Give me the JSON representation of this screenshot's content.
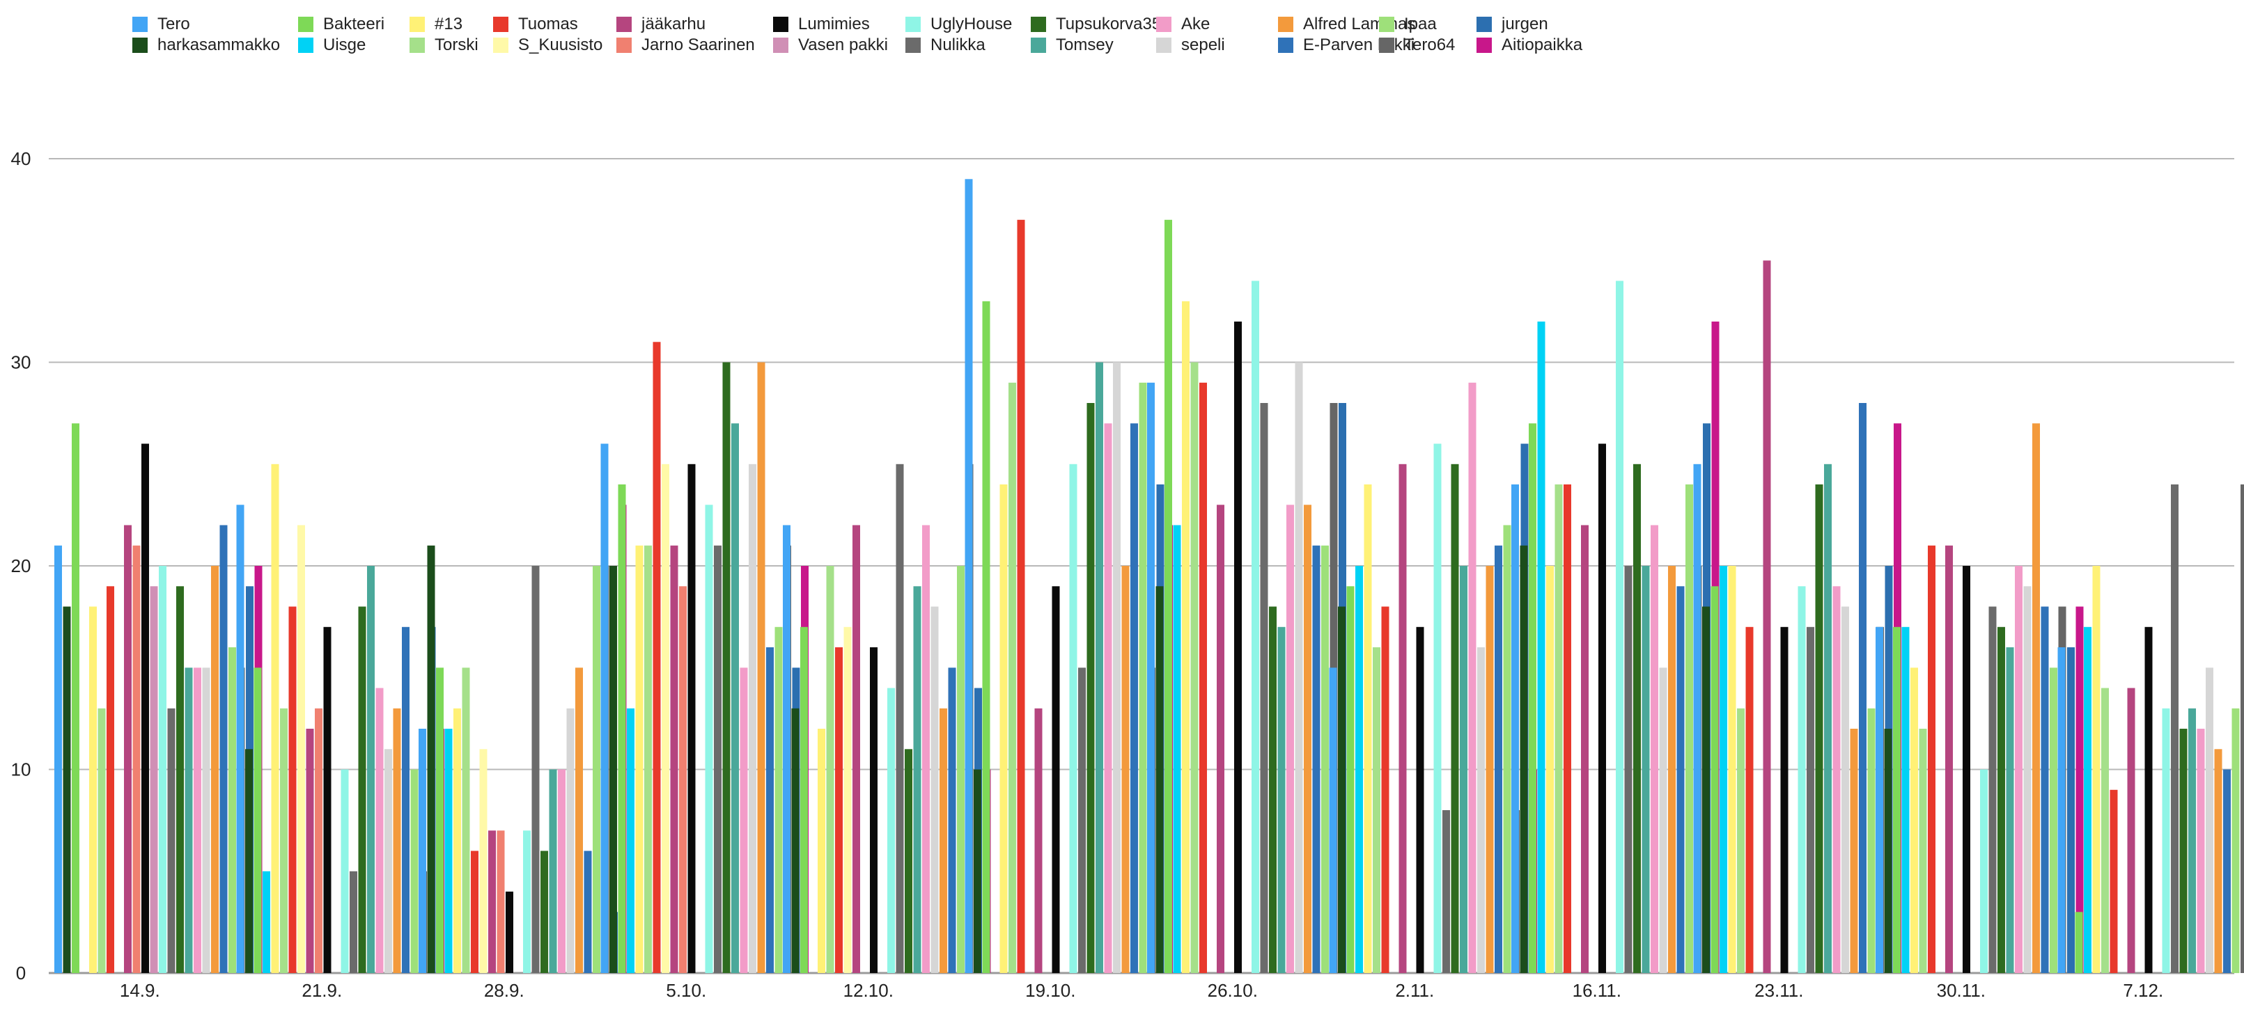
{
  "chart_data": {
    "type": "bar",
    "title": "",
    "xlabel": "",
    "ylabel": "",
    "ylim": [
      0,
      40
    ],
    "yticks": [
      0,
      10,
      20,
      30,
      40
    ],
    "grid": true,
    "legend_position": "top",
    "categories": [
      "14.9.",
      "21.9.",
      "28.9.",
      "5.10.",
      "12.10.",
      "19.10.",
      "26.10.",
      "2.11.",
      "16.11.",
      "23.11.",
      "30.11.",
      "7.12."
    ],
    "series": [
      {
        "name": "Tero",
        "color": "#42a5f5",
        "values": [
          21,
          23,
          12,
          26,
          22,
          39,
          29,
          15,
          24,
          25,
          17,
          16
        ]
      },
      {
        "name": "harkasammakko",
        "color": "#1b4d1b",
        "values": [
          18,
          11,
          21,
          20,
          13,
          10,
          19,
          18,
          21,
          18,
          12,
          null
        ]
      },
      {
        "name": "Bakteeri",
        "color": "#7ed957",
        "values": [
          27,
          15,
          15,
          24,
          17,
          33,
          37,
          19,
          27,
          19,
          17,
          3
        ]
      },
      {
        "name": "Uisge",
        "color": "#00d2f5",
        "values": [
          null,
          5,
          12,
          13,
          null,
          null,
          22,
          20,
          32,
          20,
          17,
          17
        ]
      },
      {
        "name": "#13",
        "color": "#fff176",
        "values": [
          18,
          25,
          13,
          21,
          12,
          24,
          33,
          24,
          20,
          20,
          15,
          20
        ]
      },
      {
        "name": "Torski",
        "color": "#a5e08a",
        "values": [
          13,
          13,
          15,
          21,
          20,
          29,
          30,
          16,
          24,
          13,
          12,
          14
        ]
      },
      {
        "name": "Tuomas",
        "color": "#e8392b",
        "values": [
          19,
          18,
          6,
          31,
          16,
          37,
          29,
          18,
          24,
          17,
          21,
          9
        ]
      },
      {
        "name": "S_Kuusisto",
        "color": "#fff9a8",
        "values": [
          null,
          22,
          11,
          25,
          17,
          null,
          null,
          null,
          null,
          null,
          null,
          null
        ]
      },
      {
        "name": "jääkarhu",
        "color": "#b5457f",
        "values": [
          22,
          12,
          7,
          21,
          22,
          13,
          23,
          25,
          22,
          35,
          21,
          14
        ]
      },
      {
        "name": "Jarno Saarinen",
        "color": "#f08070",
        "values": [
          21,
          13,
          7,
          19,
          null,
          null,
          null,
          null,
          null,
          null,
          null,
          null
        ]
      },
      {
        "name": "Lumimies",
        "color": "#0a0a0a",
        "values": [
          26,
          17,
          4,
          25,
          16,
          19,
          32,
          17,
          26,
          17,
          20,
          17
        ]
      },
      {
        "name": "Vasen pakki",
        "color": "#d08fb5",
        "values": [
          19,
          null,
          null,
          null,
          null,
          null,
          null,
          null,
          null,
          null,
          null,
          null
        ]
      },
      {
        "name": "UglyHouse",
        "color": "#8ff5e6",
        "values": [
          20,
          10,
          7,
          23,
          14,
          25,
          34,
          26,
          34,
          19,
          10,
          13
        ]
      },
      {
        "name": "Nulikka",
        "color": "#6b6b6b",
        "values": [
          13,
          5,
          20,
          21,
          25,
          15,
          28,
          8,
          20,
          17,
          18,
          24
        ]
      },
      {
        "name": "Tupsukorva35",
        "color": "#2e6b1f",
        "values": [
          19,
          18,
          6,
          30,
          11,
          28,
          18,
          25,
          25,
          24,
          17,
          12
        ]
      },
      {
        "name": "Tomsey",
        "color": "#4aa89a",
        "values": [
          15,
          20,
          10,
          27,
          19,
          30,
          17,
          20,
          20,
          25,
          16,
          13
        ]
      },
      {
        "name": "Ake",
        "color": "#f29cc8",
        "values": [
          15,
          14,
          10,
          15,
          22,
          27,
          23,
          29,
          22,
          19,
          20,
          12
        ]
      },
      {
        "name": "sepeli",
        "color": "#d6d6d6",
        "values": [
          15,
          11,
          13,
          25,
          18,
          30,
          30,
          16,
          15,
          18,
          19,
          15
        ]
      },
      {
        "name": "Alfred Lammas",
        "color": "#f39a3c",
        "values": [
          20,
          13,
          15,
          30,
          13,
          20,
          23,
          20,
          20,
          12,
          27,
          11
        ]
      },
      {
        "name": "E-Parven Erkki",
        "color": "#2f72b8",
        "values": [
          22,
          17,
          6,
          16,
          15,
          27,
          21,
          21,
          19,
          28,
          18,
          10
        ]
      },
      {
        "name": "Ipaa",
        "color": "#9ee07a",
        "values": [
          16,
          10,
          20,
          17,
          20,
          29,
          21,
          22,
          24,
          13,
          15,
          13
        ]
      },
      {
        "name": "Tero64",
        "color": "#666666",
        "values": [
          15,
          5,
          20,
          21,
          25,
          15,
          28,
          8,
          20,
          17,
          18,
          24
        ]
      },
      {
        "name": "jurgen",
        "color": "#2c6fb0",
        "values": [
          19,
          17,
          3,
          15,
          14,
          24,
          28,
          26,
          27,
          20,
          16,
          6
        ]
      },
      {
        "name": "Aitiopaikka",
        "color": "#c8178a",
        "values": [
          20,
          12,
          23,
          20,
          10,
          22,
          null,
          10,
          32,
          27,
          18,
          19
        ]
      }
    ]
  }
}
